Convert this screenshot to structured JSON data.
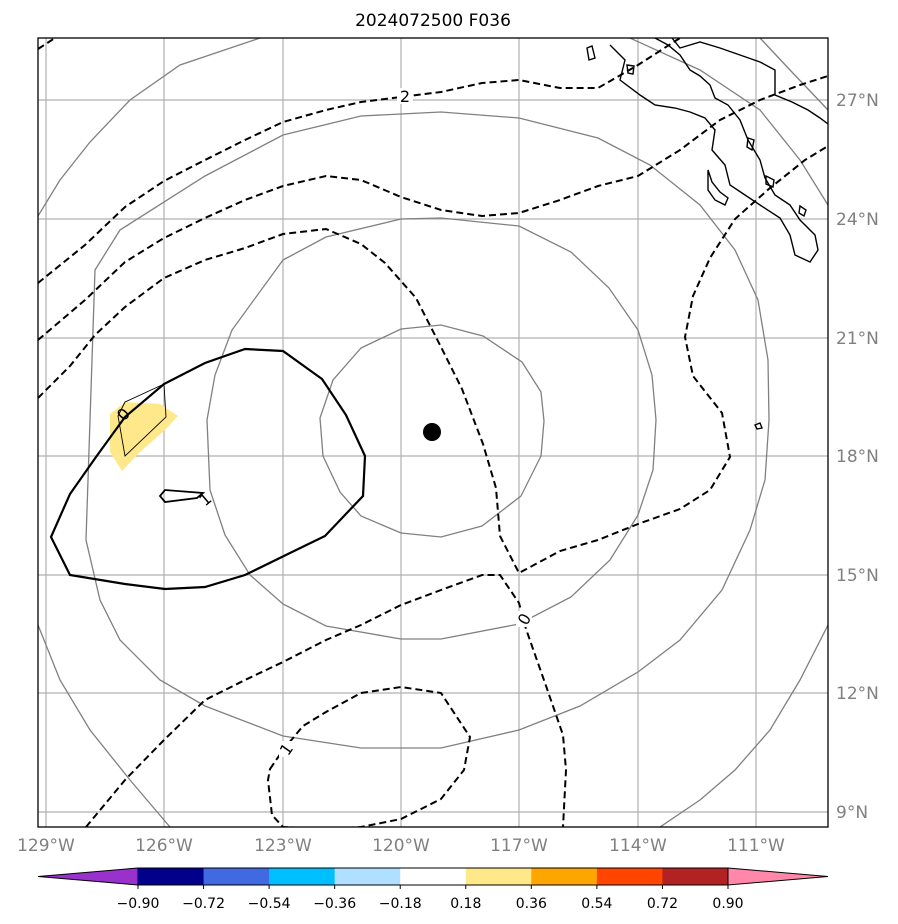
{
  "title": "2024072500 F036",
  "map": {
    "lon_range": [
      -129.3,
      -110.0
    ],
    "lat_range": [
      8.5,
      28.6
    ],
    "lon_ticks": [
      "129°W",
      "126°W",
      "123°W",
      "120°W",
      "117°W",
      "114°W",
      "111°W"
    ],
    "lat_ticks": [
      "27°N",
      "24°N",
      "21°N",
      "18°N",
      "15°N",
      "12°N",
      "9°N"
    ],
    "storm_center": {
      "lon": -119.3,
      "lat": 18.6
    },
    "range_rings_deg": [
      3,
      6,
      9,
      12,
      15
    ],
    "contour_labels": [
      "2",
      "0",
      "1",
      "0",
      "1"
    ]
  },
  "colorbar": {
    "ticks": [
      "−0.90",
      "−0.72",
      "−0.54",
      "−0.36",
      "−0.18",
      "0.18",
      "0.36",
      "0.54",
      "0.72",
      "0.90"
    ],
    "colors": [
      "#9932cc",
      "#00008b",
      "#4169e1",
      "#00bfff",
      "#b0e0ff",
      "#ffffff",
      "#ffe88a",
      "#ffa500",
      "#ff4500",
      "#b22222",
      "#ff88aa"
    ]
  },
  "colors": {
    "grid": "#b0b0b0",
    "ring": "#808080",
    "shade": "#ffe88a",
    "contour": "#000000"
  }
}
